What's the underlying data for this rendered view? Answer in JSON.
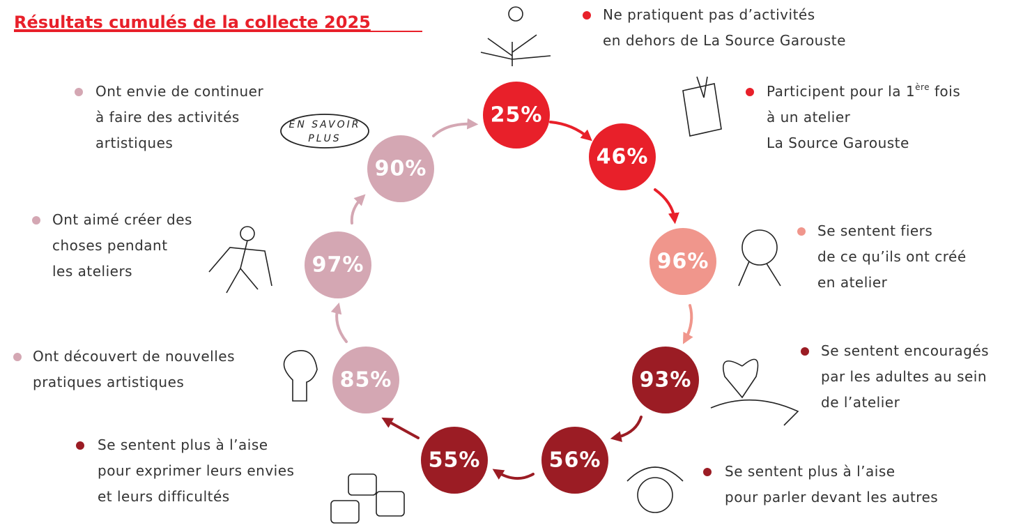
{
  "title": "Résultats cumulés de la collecte 2025",
  "badge": [
    "EN SAVOIR",
    "PLUS"
  ],
  "items": [
    {
      "value": "25%",
      "lines": [
        "Ne pratiquent pas d’activités",
        "en dehors de La Source Garouste"
      ]
    },
    {
      "value": "46%",
      "lines": [
        {
          "text": "Participent pour la 1",
          "sup": "ère",
          "after": " fois"
        },
        "à un atelier",
        "La Source Garouste"
      ]
    },
    {
      "value": "96%",
      "lines": [
        "Se sentent fiers",
        "de ce qu’ils ont créé",
        "en atelier"
      ]
    },
    {
      "value": "93%",
      "lines": [
        "Se sentent encouragés",
        "par les adultes au sein",
        "de l’atelier"
      ]
    },
    {
      "value": "56%",
      "lines": [
        "Se sentent plus à l’aise",
        "pour parler devant les autres"
      ]
    },
    {
      "value": "55%",
      "lines": [
        "Se sentent plus à l’aise",
        "pour exprimer leurs envies",
        "et leurs difficultés"
      ]
    },
    {
      "value": "85%",
      "lines": [
        "Ont découvert de nouvelles",
        "pratiques artistiques"
      ]
    },
    {
      "value": "97%",
      "lines": [
        "Ont aimé créer des",
        "choses pendant",
        "les ateliers"
      ]
    },
    {
      "value": "90%",
      "lines": [
        "Ont envie de continuer",
        "à faire des activités",
        "artistiques"
      ]
    }
  ]
}
